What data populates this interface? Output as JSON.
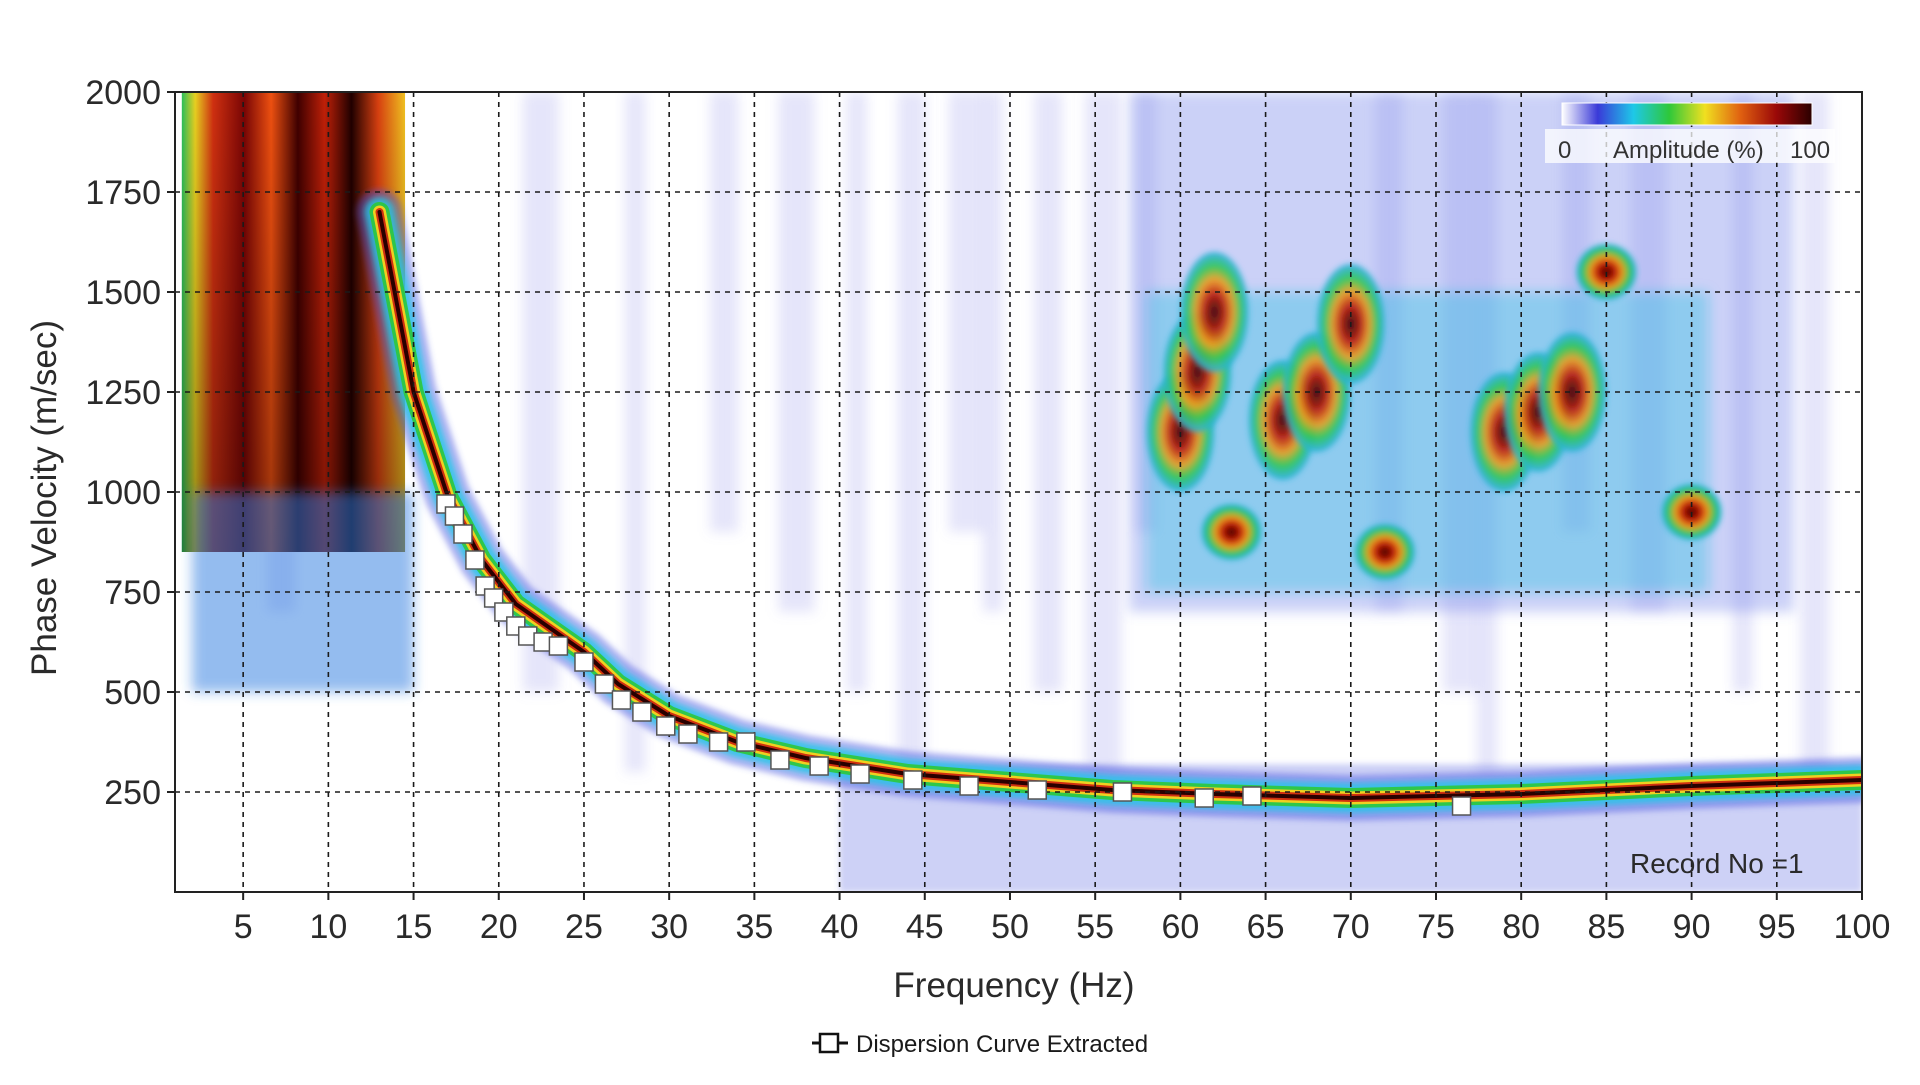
{
  "chart_data": {
    "type": "heatmap",
    "title": "",
    "xlabel": "Frequency (Hz)",
    "ylabel": "Phase Velocity (m/sec)",
    "xlim": [
      1,
      100
    ],
    "ylim": [
      0,
      2000
    ],
    "x_ticks": [
      5,
      10,
      15,
      20,
      25,
      30,
      35,
      40,
      45,
      50,
      55,
      60,
      65,
      70,
      75,
      80,
      85,
      90,
      95,
      100
    ],
    "y_ticks": [
      250,
      500,
      750,
      1000,
      1250,
      1500,
      1750,
      2000
    ],
    "grid": true,
    "colorbar": {
      "label": "Amplitude (%)",
      "min_label": "0",
      "max_label": "100",
      "colors": [
        "#ffffff",
        "#3a3ad8",
        "#1ec8e8",
        "#2ec83a",
        "#f0e020",
        "#e06010",
        "#9a0808",
        "#2a0000"
      ]
    },
    "annotation": "Record No =1",
    "legend": {
      "position": "bottom-center",
      "label": "Dispersion Curve Extracted",
      "marker": "white-square"
    },
    "series": [
      {
        "name": "Dispersion Curve Extracted",
        "marker_color": "#ffffff",
        "points": [
          {
            "x": 16.9,
            "y": 970
          },
          {
            "x": 17.4,
            "y": 940
          },
          {
            "x": 17.9,
            "y": 895
          },
          {
            "x": 18.6,
            "y": 830
          },
          {
            "x": 19.2,
            "y": 765
          },
          {
            "x": 19.7,
            "y": 735
          },
          {
            "x": 20.3,
            "y": 700
          },
          {
            "x": 21.0,
            "y": 665
          },
          {
            "x": 21.7,
            "y": 640
          },
          {
            "x": 22.6,
            "y": 625
          },
          {
            "x": 23.5,
            "y": 615
          },
          {
            "x": 25.0,
            "y": 575
          },
          {
            "x": 26.2,
            "y": 520
          },
          {
            "x": 27.2,
            "y": 480
          },
          {
            "x": 28.4,
            "y": 450
          },
          {
            "x": 29.8,
            "y": 415
          },
          {
            "x": 31.1,
            "y": 395
          },
          {
            "x": 32.9,
            "y": 375
          },
          {
            "x": 34.5,
            "y": 375
          },
          {
            "x": 36.5,
            "y": 330
          },
          {
            "x": 38.8,
            "y": 315
          },
          {
            "x": 41.2,
            "y": 295
          },
          {
            "x": 44.3,
            "y": 280
          },
          {
            "x": 47.6,
            "y": 265
          },
          {
            "x": 51.6,
            "y": 255
          },
          {
            "x": 56.6,
            "y": 250
          },
          {
            "x": 61.4,
            "y": 235
          },
          {
            "x": 64.2,
            "y": 240
          },
          {
            "x": 76.5,
            "y": 215
          }
        ]
      }
    ],
    "energy_ridges": [
      {
        "name": "fundamental-mode-ridge",
        "x": [
          13,
          15,
          17,
          19,
          21,
          23,
          25,
          27,
          30,
          34,
          38,
          44,
          50,
          56,
          62,
          70,
          80,
          90,
          100
        ],
        "y": [
          1700,
          1250,
          990,
          830,
          720,
          660,
          600,
          520,
          440,
          375,
          335,
          295,
          275,
          255,
          245,
          235,
          245,
          265,
          280
        ]
      },
      {
        "name": "high-frequency-hotspot-1",
        "x": [
          60,
          61,
          62
        ],
        "y": [
          1150,
          1300,
          1450
        ]
      },
      {
        "name": "high-frequency-hotspot-2",
        "x": [
          66,
          68,
          70
        ],
        "y": [
          1180,
          1250,
          1420
        ]
      },
      {
        "name": "high-frequency-hotspot-3",
        "x": [
          79,
          81,
          83
        ],
        "y": [
          1150,
          1200,
          1250
        ]
      }
    ]
  }
}
